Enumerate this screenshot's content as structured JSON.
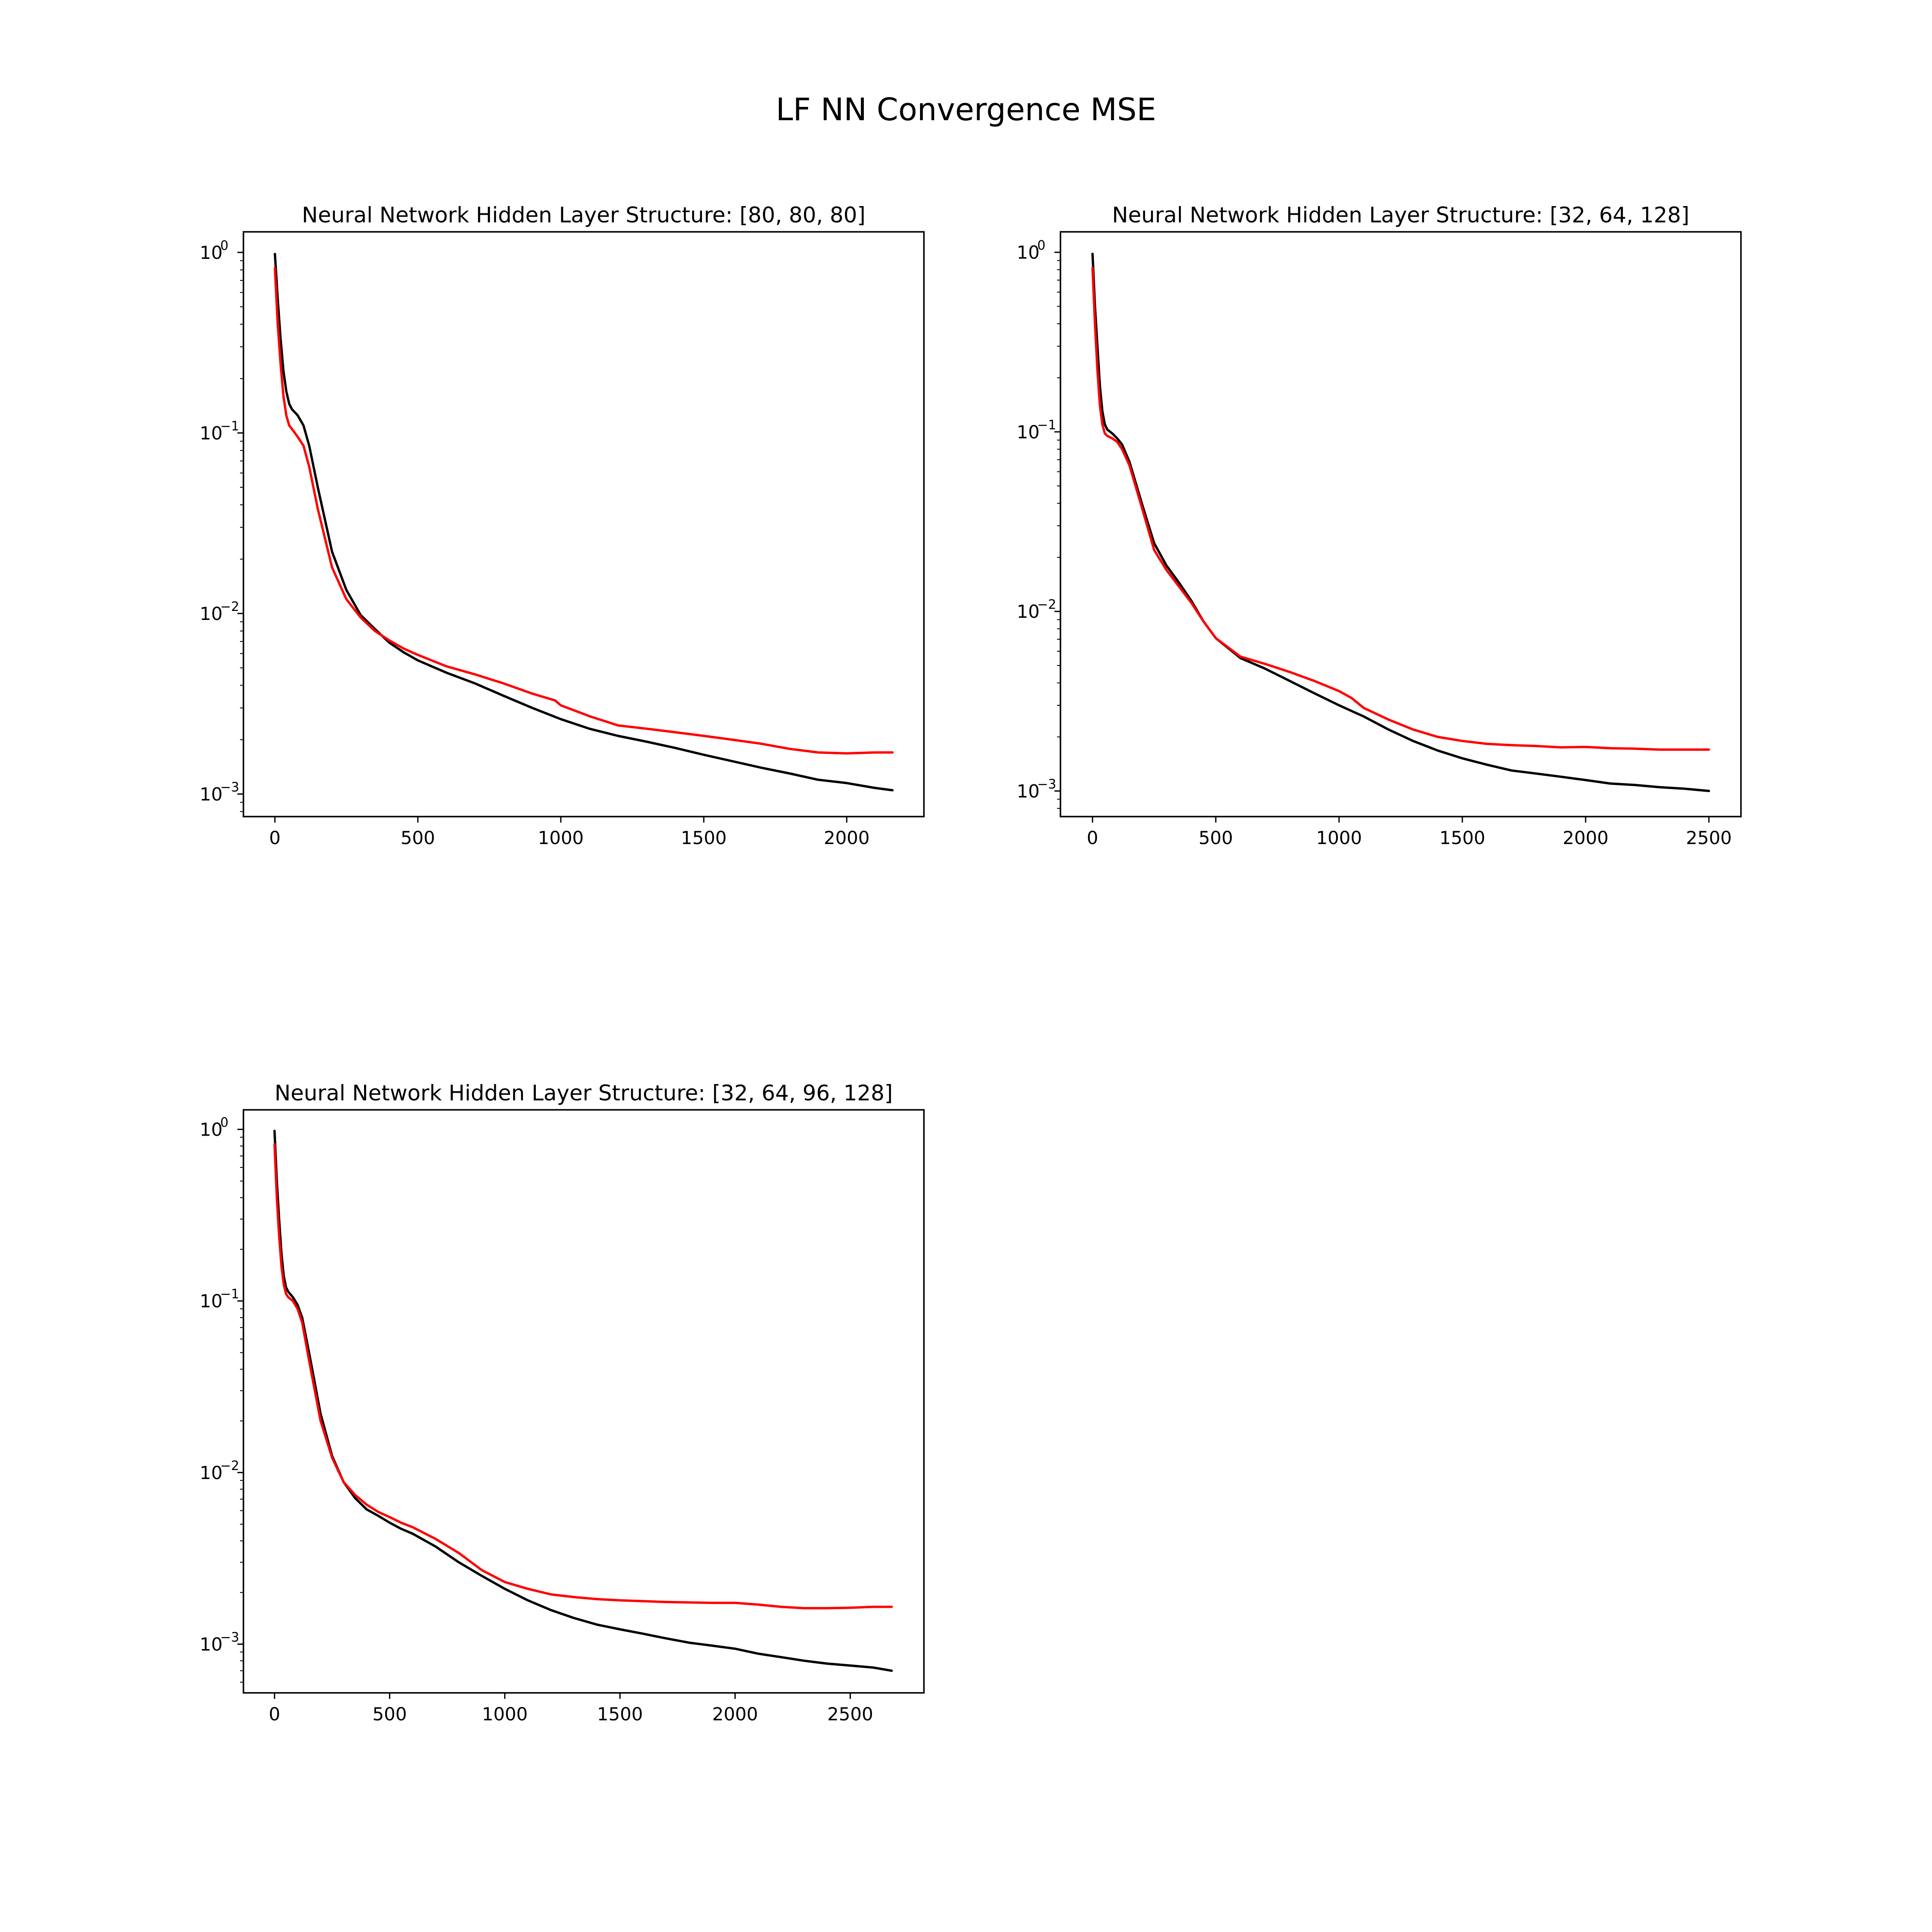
{
  "figure": {
    "suptitle": "LF NN Convergence MSE"
  },
  "colors": {
    "series_1": "#000000",
    "series_2": "#ff0000"
  },
  "chart_data": [
    {
      "type": "line",
      "title": "Neural Network Hidden Layer Structure: [80, 80, 80]",
      "xlabel": "",
      "ylabel": "",
      "yscale": "log",
      "grid": false,
      "legend": "none",
      "xlim": [
        -110,
        2270
      ],
      "ylim": [
        0.00075,
        1.3
      ],
      "xticks": [
        0,
        500,
        1000,
        1500,
        2000
      ],
      "yticks": [
        {
          "value": 1,
          "base": "10",
          "exp": "0"
        },
        {
          "value": 0.1,
          "base": "10",
          "exp": "−1"
        },
        {
          "value": 0.01,
          "base": "10",
          "exp": "−2"
        },
        {
          "value": 0.001,
          "base": "10",
          "exp": "−3"
        }
      ],
      "series": [
        {
          "color": "#000000",
          "x": [
            0,
            10,
            20,
            30,
            40,
            50,
            60,
            70,
            80,
            100,
            120,
            150,
            200,
            250,
            300,
            350,
            400,
            450,
            500,
            600,
            700,
            800,
            900,
            1000,
            1100,
            1200,
            1300,
            1400,
            1500,
            1600,
            1700,
            1800,
            1900,
            2000,
            2100,
            2160
          ],
          "y": [
            0.98,
            0.55,
            0.33,
            0.22,
            0.17,
            0.145,
            0.135,
            0.13,
            0.125,
            0.11,
            0.085,
            0.05,
            0.022,
            0.0135,
            0.0098,
            0.0082,
            0.0069,
            0.0061,
            0.0055,
            0.0047,
            0.0041,
            0.0035,
            0.003,
            0.0026,
            0.0023,
            0.0021,
            0.00195,
            0.0018,
            0.00165,
            0.00152,
            0.0014,
            0.0013,
            0.0012,
            0.00115,
            0.00108,
            0.00105
          ]
        },
        {
          "color": "#ff0000",
          "x": [
            0,
            10,
            20,
            30,
            40,
            50,
            60,
            70,
            80,
            100,
            120,
            150,
            200,
            250,
            300,
            350,
            400,
            450,
            500,
            600,
            700,
            800,
            900,
            980,
            1000,
            1100,
            1200,
            1300,
            1400,
            1500,
            1600,
            1700,
            1800,
            1900,
            2000,
            2100,
            2160
          ],
          "y": [
            0.82,
            0.4,
            0.24,
            0.16,
            0.125,
            0.11,
            0.105,
            0.1,
            0.095,
            0.085,
            0.065,
            0.038,
            0.018,
            0.012,
            0.0095,
            0.008,
            0.0071,
            0.0064,
            0.0059,
            0.0051,
            0.0046,
            0.0041,
            0.0036,
            0.0033,
            0.0031,
            0.0027,
            0.0024,
            0.0023,
            0.0022,
            0.0021,
            0.002,
            0.0019,
            0.00178,
            0.0017,
            0.00168,
            0.0017,
            0.0017
          ]
        }
      ]
    },
    {
      "type": "line",
      "title": "Neural Network Hidden Layer Structure: [32, 64, 128]",
      "xlabel": "",
      "ylabel": "",
      "yscale": "log",
      "grid": false,
      "legend": "none",
      "xlim": [
        -130,
        2630
      ],
      "ylim": [
        0.00072,
        1.3
      ],
      "xticks": [
        0,
        500,
        1000,
        1500,
        2000,
        2500
      ],
      "yticks": [
        {
          "value": 1,
          "base": "10",
          "exp": "0"
        },
        {
          "value": 0.1,
          "base": "10",
          "exp": "−1"
        },
        {
          "value": 0.01,
          "base": "10",
          "exp": "−2"
        },
        {
          "value": 0.001,
          "base": "10",
          "exp": "−3"
        }
      ],
      "series": [
        {
          "color": "#000000",
          "x": [
            0,
            10,
            20,
            30,
            40,
            50,
            60,
            80,
            100,
            120,
            150,
            200,
            250,
            300,
            350,
            400,
            450,
            500,
            600,
            700,
            800,
            900,
            1000,
            1100,
            1200,
            1300,
            1400,
            1500,
            1600,
            1700,
            1800,
            1900,
            2000,
            2100,
            2200,
            2300,
            2400,
            2500
          ],
          "y": [
            0.98,
            0.5,
            0.3,
            0.18,
            0.13,
            0.11,
            0.103,
            0.098,
            0.092,
            0.085,
            0.068,
            0.04,
            0.024,
            0.018,
            0.0145,
            0.0115,
            0.0088,
            0.0071,
            0.0055,
            0.0048,
            0.0041,
            0.0035,
            0.003,
            0.0026,
            0.0022,
            0.0019,
            0.00168,
            0.00152,
            0.0014,
            0.0013,
            0.00125,
            0.0012,
            0.00115,
            0.0011,
            0.00108,
            0.00105,
            0.00103,
            0.001
          ]
        },
        {
          "color": "#ff0000",
          "x": [
            0,
            10,
            20,
            30,
            40,
            50,
            60,
            80,
            100,
            120,
            150,
            200,
            250,
            300,
            350,
            400,
            450,
            500,
            600,
            700,
            800,
            900,
            1000,
            1050,
            1100,
            1200,
            1300,
            1400,
            1500,
            1600,
            1700,
            1800,
            1900,
            2000,
            2100,
            2200,
            2300,
            2400,
            2500
          ],
          "y": [
            0.82,
            0.4,
            0.22,
            0.14,
            0.11,
            0.098,
            0.095,
            0.092,
            0.088,
            0.08,
            0.065,
            0.038,
            0.022,
            0.017,
            0.0138,
            0.0112,
            0.0088,
            0.0071,
            0.0056,
            0.0051,
            0.0046,
            0.0041,
            0.0036,
            0.0033,
            0.0029,
            0.0025,
            0.0022,
            0.002,
            0.0019,
            0.00183,
            0.0018,
            0.00178,
            0.00175,
            0.00176,
            0.00173,
            0.00172,
            0.0017,
            0.0017,
            0.0017
          ]
        }
      ]
    },
    {
      "type": "line",
      "title": "Neural Network Hidden Layer Structure: [32, 64, 96, 128]",
      "xlabel": "",
      "ylabel": "",
      "yscale": "log",
      "grid": false,
      "legend": "none",
      "xlim": [
        -135,
        2820
      ],
      "ylim": [
        0.00052,
        1.3
      ],
      "xticks": [
        0,
        500,
        1000,
        1500,
        2000,
        2500
      ],
      "yticks": [
        {
          "value": 1,
          "base": "10",
          "exp": "0"
        },
        {
          "value": 0.1,
          "base": "10",
          "exp": "−1"
        },
        {
          "value": 0.01,
          "base": "10",
          "exp": "−2"
        },
        {
          "value": 0.001,
          "base": "10",
          "exp": "−3"
        }
      ],
      "series": [
        {
          "color": "#000000",
          "x": [
            0,
            10,
            20,
            30,
            40,
            50,
            60,
            80,
            100,
            120,
            150,
            200,
            250,
            300,
            350,
            400,
            450,
            500,
            550,
            600,
            700,
            800,
            900,
            1000,
            1100,
            1200,
            1300,
            1400,
            1500,
            1600,
            1700,
            1800,
            1900,
            2000,
            2100,
            2200,
            2300,
            2400,
            2500,
            2600,
            2680
          ],
          "y": [
            0.98,
            0.5,
            0.3,
            0.19,
            0.14,
            0.12,
            0.113,
            0.105,
            0.095,
            0.08,
            0.05,
            0.022,
            0.0125,
            0.0088,
            0.0071,
            0.0061,
            0.0056,
            0.0051,
            0.0047,
            0.0044,
            0.0037,
            0.003,
            0.0025,
            0.0021,
            0.0018,
            0.00158,
            0.00142,
            0.0013,
            0.00122,
            0.00115,
            0.00108,
            0.00102,
            0.00098,
            0.00094,
            0.00088,
            0.00084,
            0.0008,
            0.00077,
            0.00075,
            0.00073,
            0.0007
          ]
        },
        {
          "color": "#ff0000",
          "x": [
            0,
            10,
            20,
            30,
            40,
            50,
            60,
            80,
            100,
            120,
            150,
            200,
            250,
            300,
            350,
            400,
            450,
            500,
            550,
            600,
            700,
            800,
            900,
            1000,
            1100,
            1200,
            1300,
            1400,
            1500,
            1600,
            1700,
            1800,
            1900,
            2000,
            2100,
            2200,
            2300,
            2400,
            2500,
            2600,
            2680
          ],
          "y": [
            0.82,
            0.4,
            0.24,
            0.16,
            0.125,
            0.11,
            0.105,
            0.1,
            0.09,
            0.075,
            0.045,
            0.02,
            0.0122,
            0.0088,
            0.0074,
            0.0065,
            0.0059,
            0.0055,
            0.0051,
            0.0048,
            0.0041,
            0.0034,
            0.0027,
            0.0023,
            0.0021,
            0.00195,
            0.00188,
            0.00183,
            0.0018,
            0.00178,
            0.00176,
            0.00175,
            0.00174,
            0.00174,
            0.0017,
            0.00165,
            0.00162,
            0.00162,
            0.00163,
            0.00165,
            0.00165
          ]
        }
      ]
    }
  ]
}
